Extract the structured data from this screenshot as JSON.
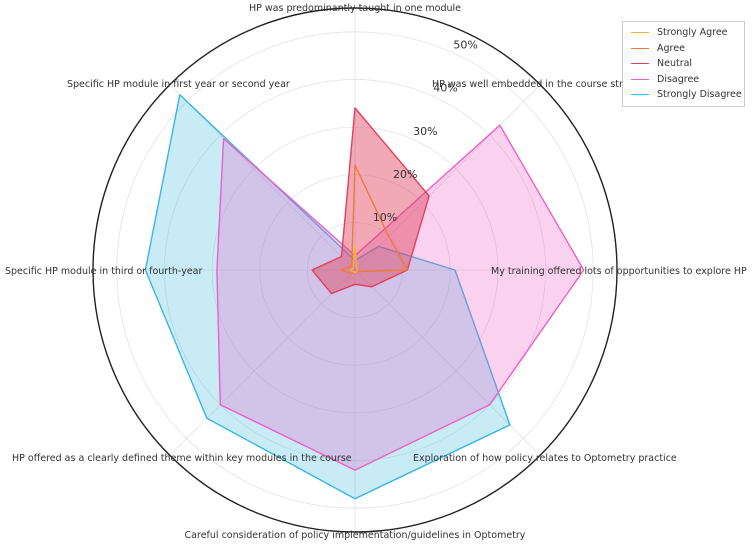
{
  "chart_data": {
    "type": "radar",
    "categories": [
      "HP was predominantly taught in one module",
      "HP was well embedded in the course structure",
      "My training offered lots of opportunities to explore HP",
      "Exploration of how policy relates to Optometry practice",
      "Careful consideration of policy implementation/guidelines in Optometry",
      "HP offered as a clearly defined theme within key modules in the course",
      "Specific HP module in third or fourth-year",
      "Specific HP module in first year or second year"
    ],
    "category_labels_display": [
      "HP was predominantly taught in one module",
      "HP was well embedded in the course structur",
      "My training offered lots of opportunities to explore HP",
      "Exploration of how policy relates to Optometry practice",
      "Careful consideration of policy implementation/guidelines in Optometry",
      "HP offered as a clearly defined theme within key modules in the course",
      "Specific HP module in third or fourth-year",
      "Specific HP module in first year or second year"
    ],
    "rlim": [
      0,
      55
    ],
    "radial_ticks": [
      10,
      20,
      30,
      40,
      50
    ],
    "radial_tick_labels": [
      "10%",
      "20%",
      "30%",
      "40%",
      "50%"
    ],
    "grid": true,
    "legend_position": "top-right",
    "series": [
      {
        "name": "Strongly Agree",
        "color": "#f2b233",
        "fill": false,
        "values": [
          5,
          0.5,
          0.5,
          0.5,
          0.5,
          0.5,
          1,
          0.5
        ]
      },
      {
        "name": "Agree",
        "color": "#f07a3a",
        "fill": false,
        "values": [
          22,
          10,
          11,
          0.5,
          0.5,
          1,
          3,
          1
        ]
      },
      {
        "name": "Neutral",
        "color": "#e0405e",
        "fill": true,
        "values": [
          34,
          22,
          11,
          5,
          3,
          7,
          9,
          4
        ]
      },
      {
        "name": "Disagree",
        "color": "#ee5fc6",
        "fill": true,
        "values": [
          3,
          43,
          48,
          40,
          42,
          40,
          29,
          39
        ]
      },
      {
        "name": "Strongly Disagree",
        "color": "#39b7e0",
        "fill": true,
        "values": [
          2,
          7,
          21,
          46,
          48,
          44,
          44,
          52
        ]
      }
    ]
  }
}
